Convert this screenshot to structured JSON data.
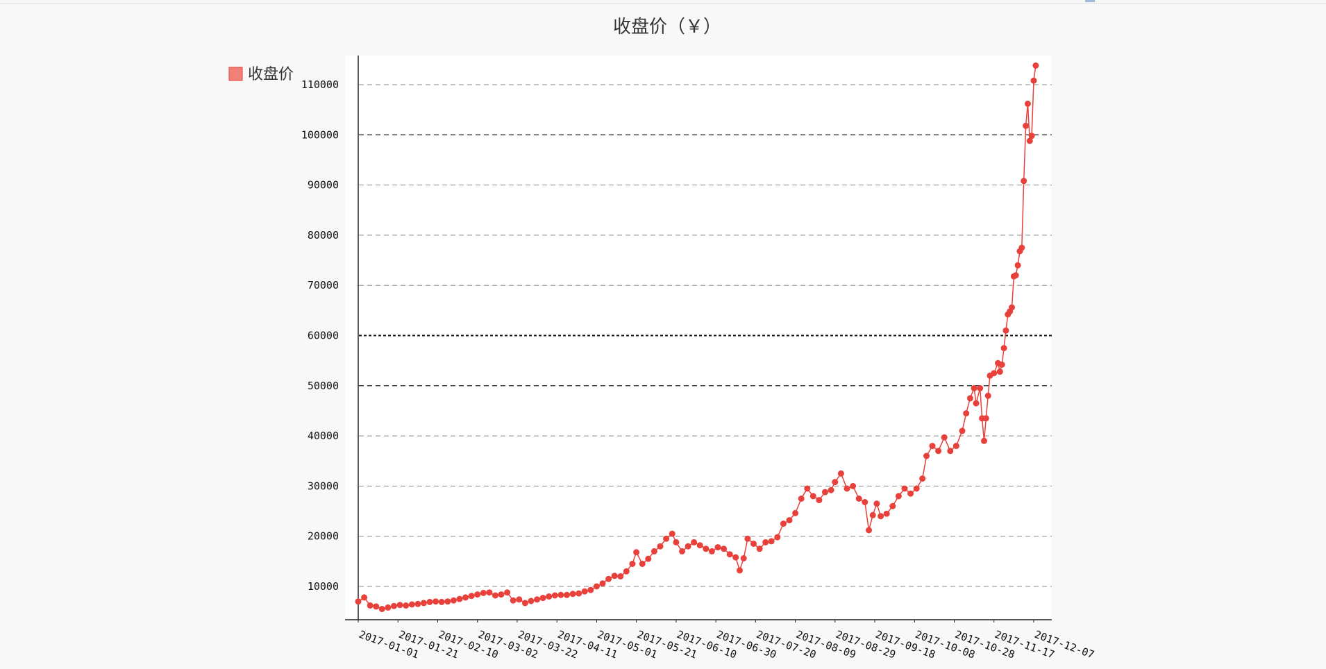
{
  "chart_data": {
    "type": "line",
    "title": "收盘价（￥）",
    "xlabel": "",
    "ylabel": "",
    "legend": {
      "label": "收盘价",
      "placement": "top-left"
    },
    "color": "#e8403a",
    "legend_color": "#f08078",
    "ylim": [
      3000,
      116000
    ],
    "yticks": [
      10000,
      20000,
      30000,
      40000,
      50000,
      60000,
      70000,
      80000,
      90000,
      100000,
      110000
    ],
    "ytick_labels": [
      "10000",
      "20000",
      "30000",
      "40000",
      "50000",
      "60000",
      "70000",
      "80000",
      "90000",
      "100000",
      "110000"
    ],
    "xticks": [
      "2017-01-01",
      "2017-01-21",
      "2017-02-10",
      "2017-03-02",
      "2017-03-22",
      "2017-04-11",
      "2017-05-01",
      "2017-05-21",
      "2017-06-10",
      "2017-06-30",
      "2017-07-20",
      "2017-08-09",
      "2017-08-29",
      "2017-09-18",
      "2017-10-08",
      "2017-10-28",
      "2017-11-17",
      "2017-12-07"
    ],
    "grid": true,
    "series": [
      {
        "name": "收盘价",
        "points": [
          [
            "2017-01-01",
            7000
          ],
          [
            "2017-01-04",
            7800
          ],
          [
            "2017-01-07",
            6200
          ],
          [
            "2017-01-10",
            6000
          ],
          [
            "2017-01-13",
            5500
          ],
          [
            "2017-01-16",
            5800
          ],
          [
            "2017-01-19",
            6100
          ],
          [
            "2017-01-22",
            6300
          ],
          [
            "2017-01-25",
            6200
          ],
          [
            "2017-01-28",
            6400
          ],
          [
            "2017-01-31",
            6500
          ],
          [
            "2017-02-03",
            6700
          ],
          [
            "2017-02-06",
            6900
          ],
          [
            "2017-02-09",
            7000
          ],
          [
            "2017-02-12",
            6900
          ],
          [
            "2017-02-15",
            7000
          ],
          [
            "2017-02-18",
            7200
          ],
          [
            "2017-02-21",
            7500
          ],
          [
            "2017-02-24",
            7800
          ],
          [
            "2017-02-27",
            8100
          ],
          [
            "2017-03-02",
            8400
          ],
          [
            "2017-03-05",
            8700
          ],
          [
            "2017-03-08",
            8800
          ],
          [
            "2017-03-11",
            8200
          ],
          [
            "2017-03-14",
            8400
          ],
          [
            "2017-03-17",
            8800
          ],
          [
            "2017-03-20",
            7200
          ],
          [
            "2017-03-23",
            7400
          ],
          [
            "2017-03-26",
            6700
          ],
          [
            "2017-03-29",
            7100
          ],
          [
            "2017-04-01",
            7400
          ],
          [
            "2017-04-04",
            7700
          ],
          [
            "2017-04-07",
            8000
          ],
          [
            "2017-04-10",
            8200
          ],
          [
            "2017-04-13",
            8300
          ],
          [
            "2017-04-16",
            8300
          ],
          [
            "2017-04-19",
            8500
          ],
          [
            "2017-04-22",
            8600
          ],
          [
            "2017-04-25",
            9000
          ],
          [
            "2017-04-28",
            9300
          ],
          [
            "2017-05-01",
            10000
          ],
          [
            "2017-05-04",
            10600
          ],
          [
            "2017-05-07",
            11500
          ],
          [
            "2017-05-10",
            12100
          ],
          [
            "2017-05-13",
            12000
          ],
          [
            "2017-05-16",
            13000
          ],
          [
            "2017-05-19",
            14500
          ],
          [
            "2017-05-21",
            16800
          ],
          [
            "2017-05-24",
            14500
          ],
          [
            "2017-05-27",
            15500
          ],
          [
            "2017-05-30",
            17000
          ],
          [
            "2017-06-02",
            18000
          ],
          [
            "2017-06-05",
            19500
          ],
          [
            "2017-06-08",
            20500
          ],
          [
            "2017-06-10",
            18800
          ],
          [
            "2017-06-13",
            17000
          ],
          [
            "2017-06-16",
            18000
          ],
          [
            "2017-06-19",
            18800
          ],
          [
            "2017-06-22",
            18200
          ],
          [
            "2017-06-25",
            17500
          ],
          [
            "2017-06-28",
            17000
          ],
          [
            "2017-07-01",
            17800
          ],
          [
            "2017-07-04",
            17500
          ],
          [
            "2017-07-07",
            16400
          ],
          [
            "2017-07-10",
            15800
          ],
          [
            "2017-07-12",
            13200
          ],
          [
            "2017-07-14",
            15600
          ],
          [
            "2017-07-16",
            19500
          ],
          [
            "2017-07-19",
            18500
          ],
          [
            "2017-07-22",
            17500
          ],
          [
            "2017-07-25",
            18800
          ],
          [
            "2017-07-28",
            19000
          ],
          [
            "2017-07-31",
            19800
          ],
          [
            "2017-08-03",
            22500
          ],
          [
            "2017-08-06",
            23200
          ],
          [
            "2017-08-09",
            24600
          ],
          [
            "2017-08-12",
            27500
          ],
          [
            "2017-08-15",
            29500
          ],
          [
            "2017-08-18",
            28000
          ],
          [
            "2017-08-21",
            27200
          ],
          [
            "2017-08-24",
            28800
          ],
          [
            "2017-08-27",
            29200
          ],
          [
            "2017-08-29",
            30800
          ],
          [
            "2017-09-01",
            32500
          ],
          [
            "2017-09-04",
            29500
          ],
          [
            "2017-09-07",
            30000
          ],
          [
            "2017-09-10",
            27500
          ],
          [
            "2017-09-13",
            26800
          ],
          [
            "2017-09-15",
            21200
          ],
          [
            "2017-09-17",
            24200
          ],
          [
            "2017-09-19",
            26500
          ],
          [
            "2017-09-21",
            24000
          ],
          [
            "2017-09-24",
            24500
          ],
          [
            "2017-09-27",
            26000
          ],
          [
            "2017-09-30",
            28000
          ],
          [
            "2017-10-03",
            29500
          ],
          [
            "2017-10-06",
            28500
          ],
          [
            "2017-10-09",
            29500
          ],
          [
            "2017-10-12",
            31500
          ],
          [
            "2017-10-14",
            36000
          ],
          [
            "2017-10-17",
            38000
          ],
          [
            "2017-10-20",
            37000
          ],
          [
            "2017-10-23",
            39700
          ],
          [
            "2017-10-26",
            37000
          ],
          [
            "2017-10-29",
            38000
          ],
          [
            "2017-11-01",
            41000
          ],
          [
            "2017-11-03",
            44500
          ],
          [
            "2017-11-05",
            47500
          ],
          [
            "2017-11-07",
            49500
          ],
          [
            "2017-11-08",
            46500
          ],
          [
            "2017-11-10",
            49500
          ],
          [
            "2017-11-11",
            43500
          ],
          [
            "2017-11-12",
            39000
          ],
          [
            "2017-11-13",
            43500
          ],
          [
            "2017-11-14",
            48000
          ],
          [
            "2017-11-15",
            52000
          ],
          [
            "2017-11-17",
            52500
          ],
          [
            "2017-11-19",
            54500
          ],
          [
            "2017-11-20",
            52800
          ],
          [
            "2017-11-21",
            54200
          ],
          [
            "2017-11-22",
            57500
          ],
          [
            "2017-11-23",
            61000
          ],
          [
            "2017-11-24",
            64200
          ],
          [
            "2017-11-25",
            64800
          ],
          [
            "2017-11-26",
            65600
          ],
          [
            "2017-11-27",
            71800
          ],
          [
            "2017-11-28",
            72000
          ],
          [
            "2017-11-29",
            74000
          ],
          [
            "2017-11-30",
            76800
          ],
          [
            "2017-12-01",
            77500
          ],
          [
            "2017-12-02",
            90800
          ],
          [
            "2017-12-03",
            101800
          ],
          [
            "2017-12-04",
            106200
          ],
          [
            "2017-12-05",
            98800
          ],
          [
            "2017-12-06",
            99800
          ],
          [
            "2017-12-07",
            110800
          ],
          [
            "2017-12-08",
            113800
          ]
        ]
      }
    ]
  }
}
